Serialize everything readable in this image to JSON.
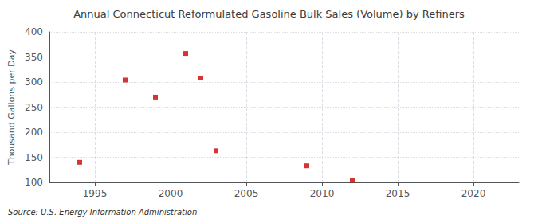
{
  "chart_data": {
    "type": "scatter",
    "title": "Annual Connecticut Reformulated Gasoline Bulk Sales (Volume) by Refiners",
    "ylabel": "Thousand Gallons per Day",
    "source": "Source: U.S. Energy Information Administration",
    "x": [
      1994,
      1997,
      1999,
      2001,
      2002,
      2003,
      2009,
      2012
    ],
    "values": [
      140,
      304,
      270,
      357,
      308,
      163,
      133,
      104
    ],
    "color": "#cc0000",
    "marker": "square",
    "xlim": [
      1992,
      2023
    ],
    "ylim": [
      100,
      400
    ],
    "xticks": [
      1995,
      2000,
      2005,
      2010,
      2015,
      2020
    ],
    "yticks": [
      100,
      150,
      200,
      250,
      300,
      350,
      400
    ],
    "grid": true
  }
}
